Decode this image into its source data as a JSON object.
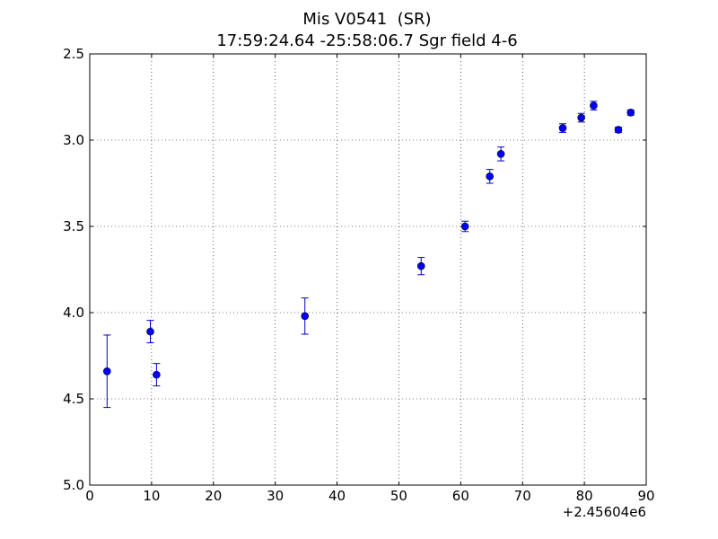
{
  "chart_data": {
    "type": "scatter",
    "title": "Mis V0541  (SR)",
    "subtitle": "17:59:24.64 -25:58:06.7 Sgr field 4-6",
    "xlabel": "",
    "ylabel": "",
    "x_offset_label": "+2.45604e6",
    "xlim": [
      0,
      90
    ],
    "ylim": [
      2.5,
      5.0
    ],
    "y_inverted": true,
    "grid": true,
    "x_ticks": [
      0,
      10,
      20,
      30,
      40,
      50,
      60,
      70,
      80,
      90
    ],
    "x_tick_labels": [
      "0",
      "10",
      "20",
      "30",
      "40",
      "50",
      "60",
      "70",
      "80",
      "90"
    ],
    "y_ticks": [
      2.5,
      3.0,
      3.5,
      4.0,
      4.5,
      5.0
    ],
    "y_tick_labels": [
      "2.5",
      "3.0",
      "3.5",
      "4.0",
      "4.5",
      "5.0"
    ],
    "marker_color": "#0000ff",
    "errorbar_color": "#0000cc",
    "series": [
      {
        "points": [
          {
            "x": 2.8,
            "y": 4.34,
            "err": 0.21
          },
          {
            "x": 9.8,
            "y": 4.11,
            "err": 0.065
          },
          {
            "x": 10.8,
            "y": 4.36,
            "err": 0.065
          },
          {
            "x": 34.8,
            "y": 4.02,
            "err": 0.105
          },
          {
            "x": 53.6,
            "y": 3.73,
            "err": 0.05
          },
          {
            "x": 60.7,
            "y": 3.5,
            "err": 0.03
          },
          {
            "x": 64.7,
            "y": 3.21,
            "err": 0.04
          },
          {
            "x": 66.5,
            "y": 3.08,
            "err": 0.04
          },
          {
            "x": 76.5,
            "y": 2.93,
            "err": 0.025
          },
          {
            "x": 79.5,
            "y": 2.87,
            "err": 0.025
          },
          {
            "x": 81.5,
            "y": 2.8,
            "err": 0.025
          },
          {
            "x": 85.5,
            "y": 2.94,
            "err": 0.015
          },
          {
            "x": 87.5,
            "y": 2.84,
            "err": 0.015
          }
        ]
      }
    ]
  }
}
